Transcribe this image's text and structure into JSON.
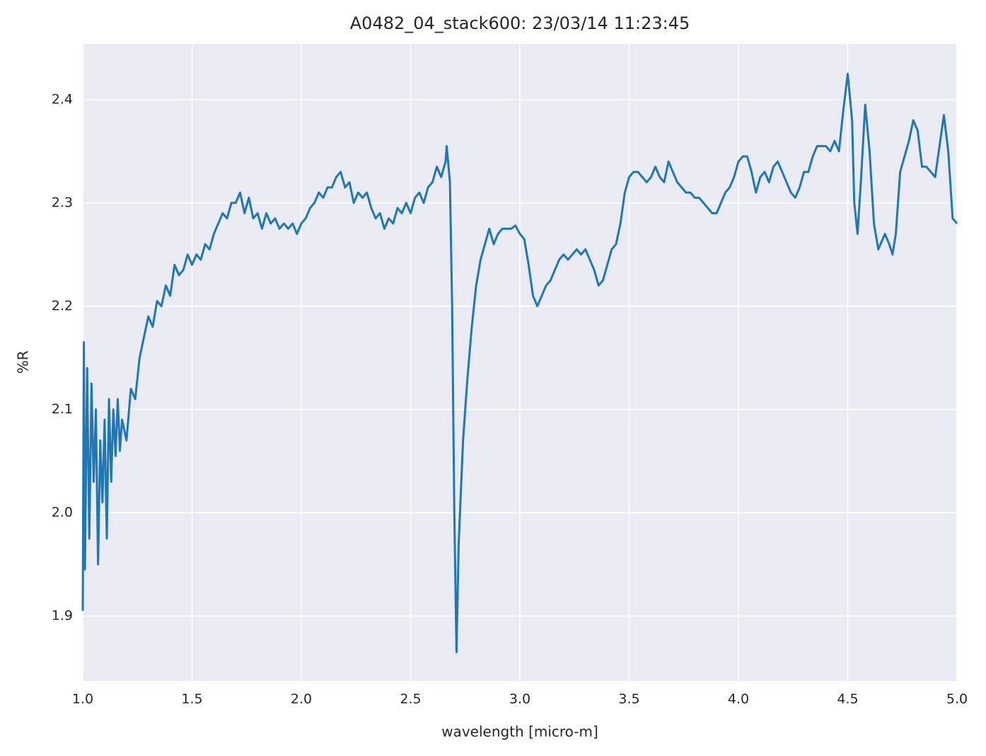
{
  "chart_data": {
    "type": "line",
    "title": "A0482_04_stack600:  23/03/14 11:23:45",
    "x_label": "wavelength [micro-m]",
    "y_label": "%R",
    "xlim": [
      1,
      5
    ],
    "ylim": [
      1.837,
      2.454
    ],
    "xticks": [
      {
        "value": 1,
        "label": "1.0"
      },
      1.5,
      {
        "value": 2,
        "label": "2.0"
      },
      2.5,
      {
        "value": 3,
        "label": "3.0"
      },
      3.5,
      {
        "value": 4,
        "label": "4.0"
      },
      4.5,
      {
        "value": 5,
        "label": "5.0"
      }
    ],
    "yticks": [
      1.9,
      {
        "value": 2,
        "label": "2.0"
      },
      2.1,
      2.2,
      2.3,
      2.4
    ],
    "grid": true,
    "series": [
      {
        "color": "#1f77b4",
        "x": [
          1.0,
          1.005,
          1.01,
          1.02,
          1.03,
          1.04,
          1.05,
          1.06,
          1.07,
          1.08,
          1.09,
          1.1,
          1.11,
          1.12,
          1.13,
          1.14,
          1.15,
          1.16,
          1.17,
          1.18,
          1.2,
          1.22,
          1.24,
          1.26,
          1.28,
          1.3,
          1.32,
          1.34,
          1.36,
          1.38,
          1.4,
          1.42,
          1.44,
          1.46,
          1.48,
          1.5,
          1.52,
          1.54,
          1.56,
          1.58,
          1.6,
          1.62,
          1.64,
          1.66,
          1.68,
          1.7,
          1.72,
          1.74,
          1.76,
          1.78,
          1.8,
          1.82,
          1.84,
          1.86,
          1.88,
          1.9,
          1.92,
          1.94,
          1.96,
          1.98,
          2.0,
          2.02,
          2.04,
          2.06,
          2.08,
          2.1,
          2.12,
          2.14,
          2.16,
          2.18,
          2.2,
          2.22,
          2.24,
          2.26,
          2.28,
          2.3,
          2.32,
          2.34,
          2.36,
          2.38,
          2.4,
          2.42,
          2.44,
          2.46,
          2.48,
          2.5,
          2.52,
          2.54,
          2.56,
          2.58,
          2.6,
          2.62,
          2.64,
          2.66,
          2.665,
          2.68,
          2.69,
          2.7,
          2.71,
          2.72,
          2.74,
          2.76,
          2.78,
          2.8,
          2.82,
          2.84,
          2.86,
          2.88,
          2.9,
          2.92,
          2.94,
          2.96,
          2.98,
          3.0,
          3.02,
          3.04,
          3.06,
          3.08,
          3.1,
          3.12,
          3.14,
          3.16,
          3.18,
          3.2,
          3.22,
          3.24,
          3.26,
          3.28,
          3.3,
          3.32,
          3.34,
          3.36,
          3.38,
          3.4,
          3.42,
          3.44,
          3.46,
          3.48,
          3.5,
          3.52,
          3.54,
          3.56,
          3.58,
          3.6,
          3.62,
          3.64,
          3.66,
          3.68,
          3.7,
          3.72,
          3.74,
          3.76,
          3.78,
          3.8,
          3.82,
          3.84,
          3.86,
          3.88,
          3.9,
          3.92,
          3.94,
          3.96,
          3.98,
          4.0,
          4.02,
          4.04,
          4.06,
          4.08,
          4.1,
          4.12,
          4.14,
          4.16,
          4.18,
          4.2,
          4.22,
          4.24,
          4.26,
          4.28,
          4.3,
          4.32,
          4.34,
          4.36,
          4.38,
          4.4,
          4.42,
          4.44,
          4.46,
          4.48,
          4.5,
          4.52,
          4.53,
          4.545,
          4.56,
          4.58,
          4.6,
          4.62,
          4.64,
          4.66,
          4.67,
          4.69,
          4.705,
          4.72,
          4.74,
          4.76,
          4.78,
          4.8,
          4.82,
          4.84,
          4.86,
          4.88,
          4.9,
          4.92,
          4.94,
          4.96,
          4.98,
          5.0
        ],
        "values": [
          1.905,
          2.165,
          1.945,
          2.14,
          1.975,
          2.125,
          2.03,
          2.1,
          1.95,
          2.07,
          2.01,
          2.09,
          1.975,
          2.11,
          2.03,
          2.1,
          2.055,
          2.11,
          2.06,
          2.09,
          2.07,
          2.12,
          2.11,
          2.15,
          2.17,
          2.19,
          2.18,
          2.205,
          2.2,
          2.22,
          2.21,
          2.24,
          2.23,
          2.235,
          2.25,
          2.24,
          2.25,
          2.245,
          2.26,
          2.255,
          2.27,
          2.28,
          2.29,
          2.285,
          2.3,
          2.3,
          2.31,
          2.29,
          2.305,
          2.285,
          2.29,
          2.275,
          2.29,
          2.28,
          2.285,
          2.275,
          2.28,
          2.275,
          2.28,
          2.27,
          2.28,
          2.285,
          2.295,
          2.3,
          2.31,
          2.305,
          2.315,
          2.315,
          2.325,
          2.33,
          2.315,
          2.32,
          2.3,
          2.31,
          2.305,
          2.31,
          2.295,
          2.285,
          2.29,
          2.275,
          2.285,
          2.28,
          2.295,
          2.29,
          2.3,
          2.29,
          2.305,
          2.31,
          2.3,
          2.315,
          2.32,
          2.335,
          2.325,
          2.34,
          2.355,
          2.32,
          2.2,
          2.0,
          1.865,
          1.97,
          2.07,
          2.13,
          2.18,
          2.22,
          2.245,
          2.26,
          2.275,
          2.26,
          2.27,
          2.275,
          2.275,
          2.275,
          2.278,
          2.27,
          2.265,
          2.24,
          2.21,
          2.2,
          2.21,
          2.22,
          2.225,
          2.235,
          2.245,
          2.25,
          2.245,
          2.25,
          2.255,
          2.25,
          2.255,
          2.245,
          2.235,
          2.22,
          2.225,
          2.24,
          2.255,
          2.26,
          2.28,
          2.31,
          2.325,
          2.33,
          2.33,
          2.325,
          2.32,
          2.325,
          2.335,
          2.325,
          2.32,
          2.34,
          2.33,
          2.32,
          2.315,
          2.31,
          2.31,
          2.305,
          2.305,
          2.3,
          2.295,
          2.29,
          2.29,
          2.3,
          2.31,
          2.315,
          2.325,
          2.34,
          2.345,
          2.345,
          2.33,
          2.31,
          2.325,
          2.33,
          2.32,
          2.335,
          2.34,
          2.33,
          2.32,
          2.31,
          2.305,
          2.315,
          2.33,
          2.33,
          2.345,
          2.355,
          2.355,
          2.355,
          2.35,
          2.36,
          2.35,
          2.39,
          2.425,
          2.38,
          2.3,
          2.27,
          2.32,
          2.395,
          2.35,
          2.28,
          2.255,
          2.265,
          2.27,
          2.26,
          2.25,
          2.27,
          2.33,
          2.345,
          2.36,
          2.38,
          2.37,
          2.335,
          2.335,
          2.33,
          2.325,
          2.355,
          2.385,
          2.35,
          2.285,
          2.28
        ]
      }
    ]
  }
}
